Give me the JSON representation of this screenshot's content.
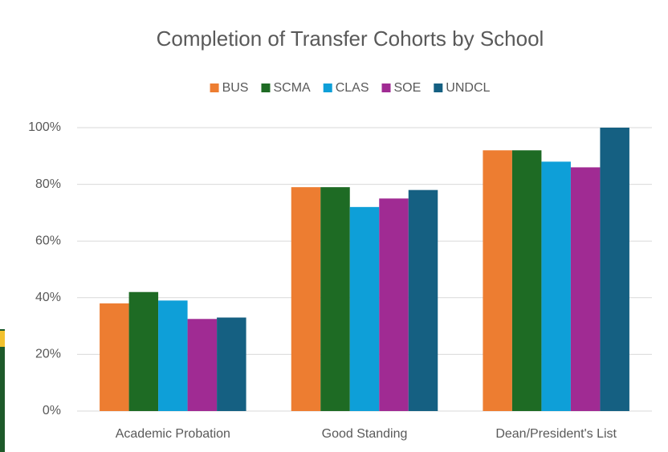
{
  "chart_data": {
    "type": "bar",
    "title": "Completion of Transfer Cohorts  by School",
    "categories": [
      "Academic Probation",
      "Good Standing",
      "Dean/President's List"
    ],
    "series": [
      {
        "name": "BUS",
        "color": "#ED7D31",
        "values": [
          38,
          79,
          92
        ]
      },
      {
        "name": "SCMA",
        "color": "#1E6B24",
        "values": [
          42,
          79,
          92
        ]
      },
      {
        "name": "CLAS",
        "color": "#0E9FD8",
        "values": [
          39,
          72,
          88
        ]
      },
      {
        "name": "SOE",
        "color": "#A02B93",
        "values": [
          32.5,
          75,
          86
        ]
      },
      {
        "name": "UNDCL",
        "color": "#156082",
        "values": [
          33,
          78,
          100
        ]
      }
    ],
    "ylim": [
      0,
      100
    ],
    "yticks": [
      {
        "value": 0,
        "label": "0%"
      },
      {
        "value": 20,
        "label": "20%"
      },
      {
        "value": 40,
        "label": "40%"
      },
      {
        "value": 60,
        "label": "60%"
      },
      {
        "value": 80,
        "label": "80%"
      },
      {
        "value": 100,
        "label": "100%"
      }
    ],
    "grid": true,
    "legend": "top"
  }
}
